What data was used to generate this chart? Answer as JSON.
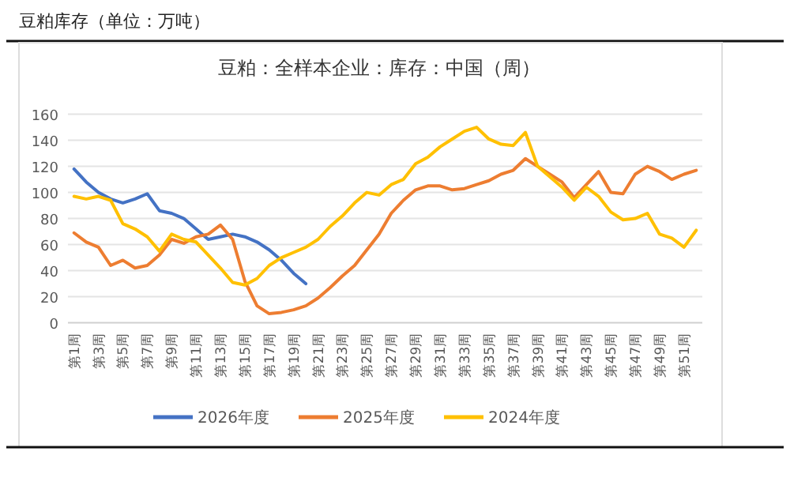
{
  "chart_data": {
    "type": "line",
    "title": "豆粕库存（单位：万吨）",
    "subtitle": "豆粕：全样本企业：库存：中国（周）",
    "categories": [
      "第1周",
      null,
      "第3周",
      null,
      "第5周",
      null,
      "第7周",
      null,
      "第9周",
      null,
      "第11周",
      null,
      "第13周",
      null,
      "第15周",
      null,
      "第17周",
      null,
      "第19周",
      null,
      "第21周",
      null,
      "第23周",
      null,
      "第25周",
      null,
      "第27周",
      null,
      "第29周",
      null,
      "第31周",
      null,
      "第33周",
      null,
      "第35周",
      null,
      "第37周",
      null,
      "第39周",
      null,
      "第41周",
      null,
      "第43周",
      null,
      "第45周",
      null,
      "第47周",
      null,
      "第49周",
      null,
      "第51周",
      null
    ],
    "series": [
      {
        "name": "2026年度",
        "color": "#4472c4",
        "values": [
          118,
          108,
          100,
          95,
          92,
          95,
          99,
          86,
          84,
          80,
          72,
          64,
          66,
          68,
          66,
          62,
          56,
          48,
          38,
          30,
          null,
          null,
          null,
          null,
          null,
          null,
          null,
          null,
          null,
          null,
          null,
          null,
          null,
          null,
          null,
          null,
          null,
          null,
          null,
          null,
          null,
          null,
          null,
          null,
          null,
          null,
          null,
          null,
          null,
          null,
          null,
          null
        ]
      },
      {
        "name": "2025年度",
        "color": "#ed7d31",
        "values": [
          69,
          62,
          58,
          44,
          48,
          42,
          44,
          52,
          64,
          61,
          66,
          68,
          75,
          64,
          32,
          13,
          7,
          8,
          10,
          13,
          19,
          27,
          36,
          44,
          56,
          68,
          84,
          94,
          102,
          105,
          105,
          102,
          103,
          106,
          109,
          114,
          117,
          126,
          120,
          114,
          108,
          96,
          106,
          116,
          100,
          99,
          114,
          120,
          116,
          110,
          114,
          117
        ]
      },
      {
        "name": "2024年度",
        "color": "#ffc000",
        "values": [
          97,
          95,
          97,
          94,
          76,
          72,
          66,
          55,
          68,
          64,
          62,
          52,
          42,
          31,
          29,
          34,
          44,
          50,
          54,
          58,
          64,
          74,
          82,
          92,
          100,
          98,
          106,
          110,
          122,
          127,
          135,
          141,
          147,
          150,
          141,
          137,
          136,
          146,
          120,
          112,
          104,
          94,
          104,
          97,
          85,
          79,
          80,
          84,
          68,
          65,
          58,
          71
        ]
      }
    ],
    "ylim": [
      0,
      160
    ],
    "yticks": [
      0,
      20,
      40,
      60,
      80,
      100,
      120,
      140,
      160
    ],
    "grid": "y",
    "legend": "bottom",
    "marker": "none",
    "line_style": "solid"
  }
}
